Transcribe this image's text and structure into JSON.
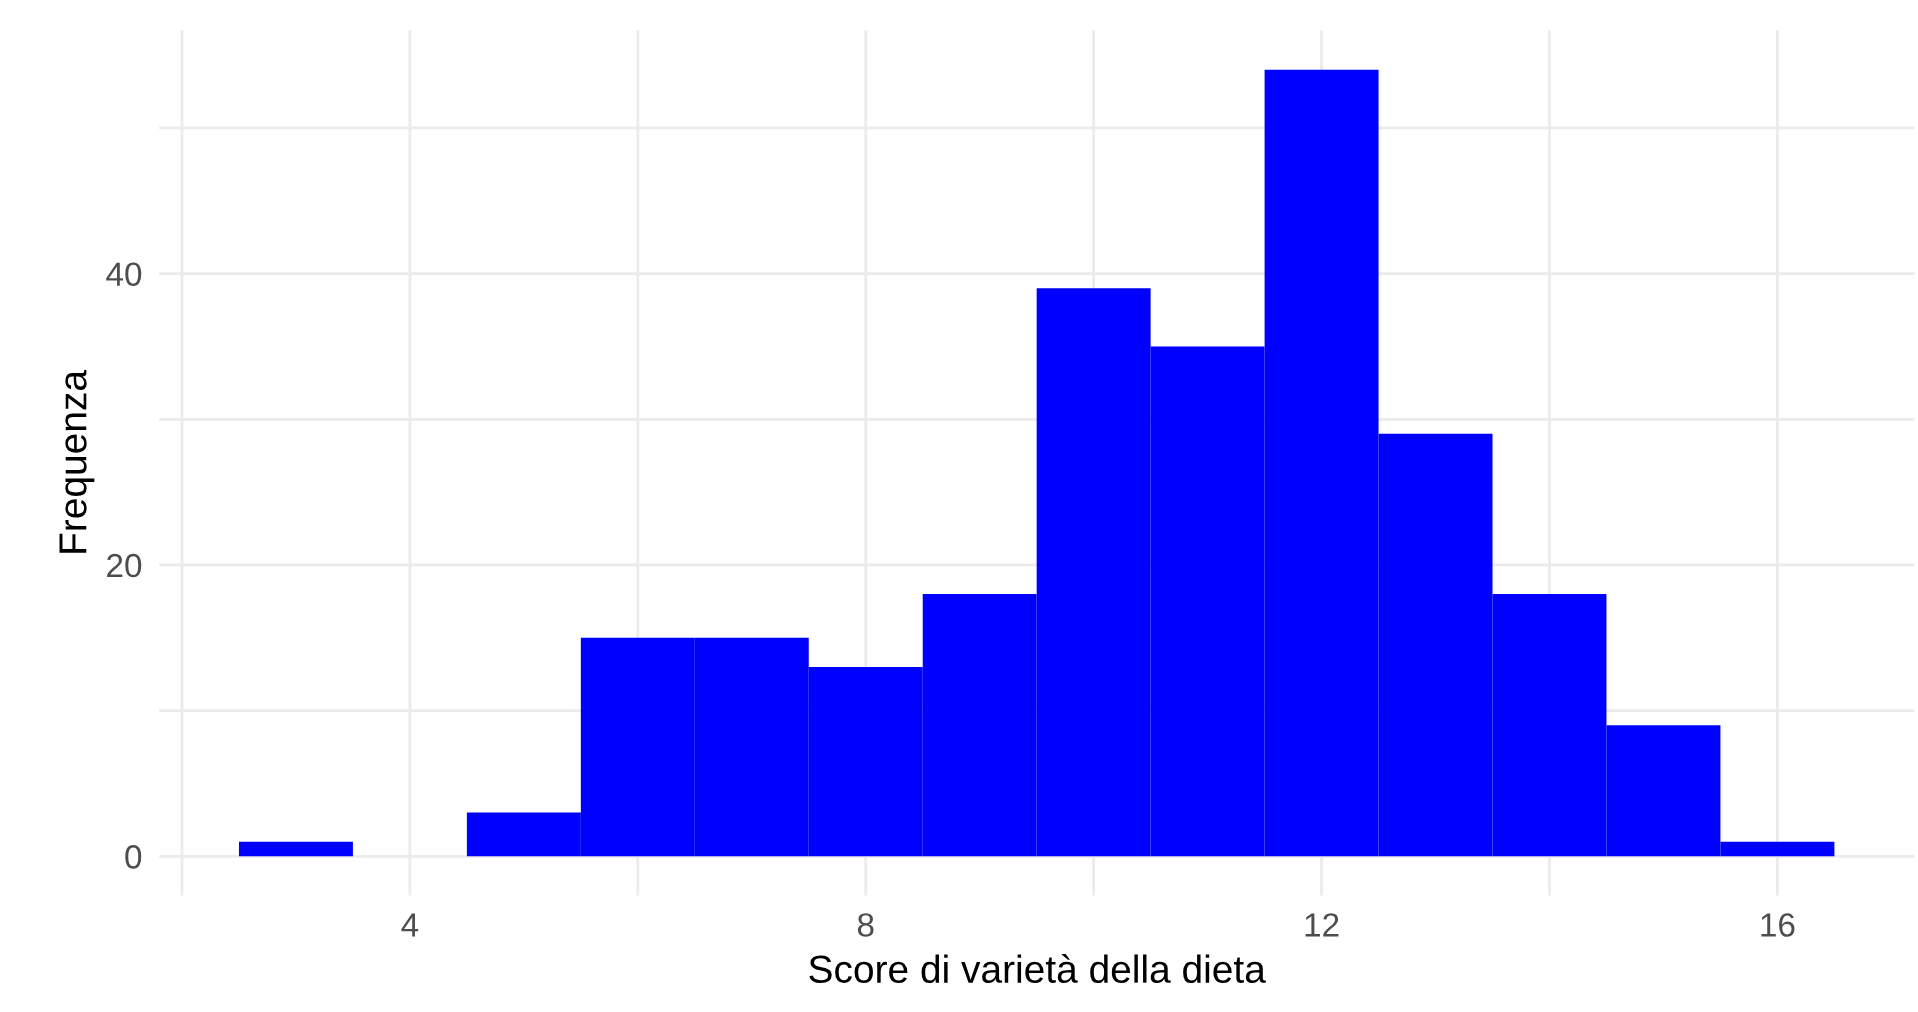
{
  "chart_data": {
    "type": "histogram",
    "xlabel": "Score di varietà della dieta",
    "ylabel": "Frequenza",
    "bins": [
      2.5,
      3.5,
      4.5,
      5.5,
      6.5,
      7.5,
      8.5,
      9.5,
      10.5,
      11.5,
      12.5,
      13.5,
      14.5,
      15.5,
      16.5
    ],
    "values": [
      1,
      0,
      3,
      15,
      15,
      13,
      18,
      39,
      35,
      54,
      29,
      18,
      9,
      1
    ],
    "color": "#0000ff",
    "xlim": [
      1.8,
      17.2
    ],
    "xticks": [
      {
        "value": 2,
        "label": null
      },
      4,
      {
        "value": 6,
        "label": null
      },
      8,
      {
        "value": 10,
        "label": null
      },
      12,
      {
        "value": 14,
        "label": null
      },
      16
    ],
    "ylim": [
      -2.7,
      56.7
    ],
    "yticks": [
      0,
      {
        "value": 10,
        "label": null
      },
      20,
      {
        "value": 30,
        "label": null
      },
      40,
      {
        "value": 50,
        "label": null
      }
    ],
    "grid": true
  }
}
